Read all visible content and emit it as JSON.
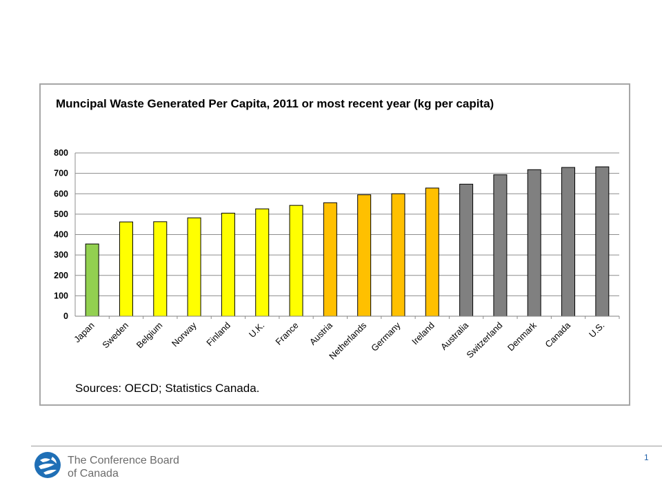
{
  "chart_data": {
    "type": "bar",
    "title": "Muncipal Waste Generated Per Capita, 2011 or most recent year (kg per capita)",
    "categories": [
      "Japan",
      "Sweden",
      "Belgium",
      "Norway",
      "Finland",
      "U.K.",
      "France",
      "Austria",
      "Netherlands",
      "Germany",
      "Ireland",
      "Australia",
      "Switzerland",
      "Denmark",
      "Canada",
      "U.S."
    ],
    "values": [
      354,
      462,
      463,
      482,
      505,
      526,
      543,
      556,
      595,
      600,
      628,
      647,
      693,
      718,
      729,
      732
    ],
    "bar_colors": [
      "#92d050",
      "#ffff00",
      "#ffff00",
      "#ffff00",
      "#ffff00",
      "#ffff00",
      "#ffff00",
      "#ffc000",
      "#ffc000",
      "#ffc000",
      "#ffc000",
      "#808080",
      "#808080",
      "#808080",
      "#808080",
      "#808080"
    ],
    "ylim": [
      0,
      800
    ],
    "yticks": [
      "0",
      "100",
      "200",
      "300",
      "400",
      "500",
      "600",
      "700",
      "800"
    ],
    "grid": true,
    "legend": "none",
    "source": "Sources: OECD; Statistics Canada."
  },
  "footer": {
    "org_line1": "The Conference Board",
    "org_line2": "of Canada",
    "page_number": "1",
    "logo_icon": "conference-board-globe-icon",
    "logo_color": "#1f6fb6"
  }
}
